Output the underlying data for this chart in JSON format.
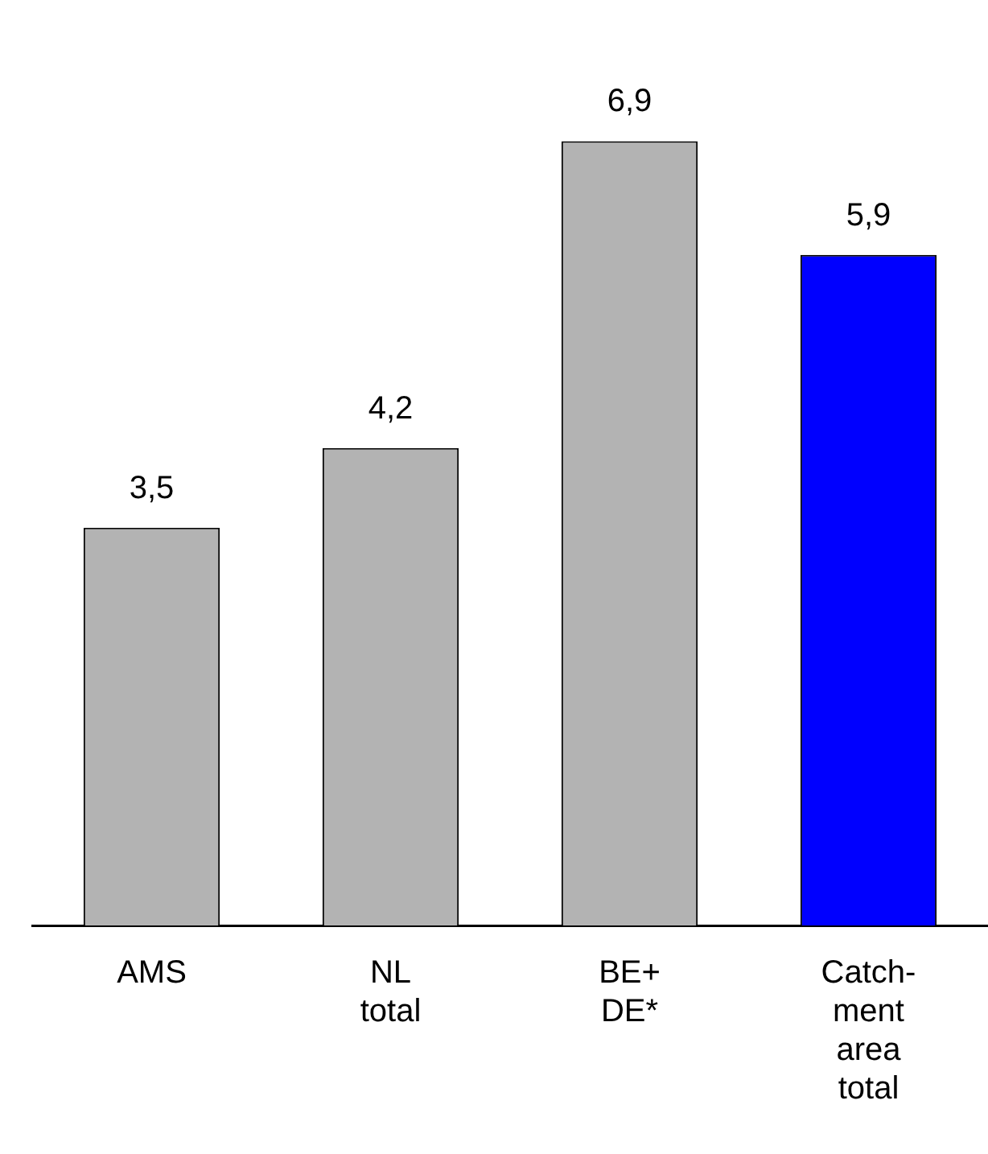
{
  "chart_data": {
    "type": "bar",
    "categories": [
      "AMS",
      "NL\ntotal",
      "BE+\nDE*",
      "Catch-\nment\narea\ntotal"
    ],
    "values": [
      3.5,
      4.2,
      6.9,
      5.9
    ],
    "colors": [
      "#b3b3b3",
      "#b3b3b3",
      "#b3b3b3",
      "#0000ff"
    ],
    "value_labels": [
      "3,5",
      "4,2",
      "6,9",
      "5,9"
    ],
    "legend": false,
    "grid": false
  }
}
